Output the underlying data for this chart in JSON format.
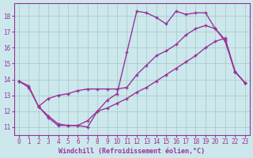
{
  "bg_color": "#cce8ec",
  "line_color": "#993399",
  "grid_color": "#aacccc",
  "xlabel": "Windchill (Refroidissement éolien,°C)",
  "xlim": [
    -0.5,
    23.5
  ],
  "ylim": [
    10.5,
    18.8
  ],
  "yticks": [
    11,
    12,
    13,
    14,
    15,
    16,
    17,
    18
  ],
  "xticks": [
    0,
    1,
    2,
    3,
    4,
    5,
    6,
    7,
    8,
    9,
    10,
    11,
    12,
    13,
    14,
    15,
    16,
    17,
    18,
    19,
    20,
    21,
    22,
    23
  ],
  "line1_x": [
    0,
    1,
    2,
    3,
    4,
    5,
    6,
    7,
    8,
    9,
    10,
    11,
    12,
    13,
    14,
    15,
    16,
    17,
    18,
    19,
    20,
    21,
    22,
    23
  ],
  "line1_y": [
    13.9,
    13.6,
    12.3,
    11.6,
    11.1,
    11.1,
    11.1,
    11.0,
    12.0,
    12.7,
    13.1,
    15.7,
    18.3,
    18.2,
    17.9,
    17.5,
    18.3,
    18.1,
    18.2,
    18.2,
    17.2,
    16.4,
    14.5,
    13.8
  ],
  "line2_x": [
    0,
    1,
    2,
    3,
    4,
    5,
    6,
    7,
    8,
    9,
    10,
    11,
    12,
    13,
    14,
    15,
    16,
    17,
    18,
    19,
    20,
    21,
    22,
    23
  ],
  "line2_y": [
    13.9,
    13.5,
    12.3,
    12.8,
    13.0,
    13.1,
    13.3,
    13.4,
    13.4,
    13.4,
    13.4,
    13.5,
    14.3,
    14.9,
    15.5,
    15.8,
    16.2,
    16.8,
    17.2,
    17.4,
    17.2,
    16.5,
    14.5,
    13.8
  ],
  "line3_x": [
    2,
    3,
    4,
    5,
    6,
    7,
    8,
    9,
    10,
    11,
    12,
    13,
    14,
    15,
    16,
    17,
    18,
    19,
    20,
    21,
    22,
    23
  ],
  "line3_y": [
    12.3,
    11.7,
    11.2,
    11.1,
    11.1,
    11.4,
    12.0,
    12.2,
    12.5,
    12.8,
    13.2,
    13.5,
    13.9,
    14.3,
    14.7,
    15.1,
    15.5,
    16.0,
    16.4,
    16.6,
    14.5,
    13.8
  ]
}
